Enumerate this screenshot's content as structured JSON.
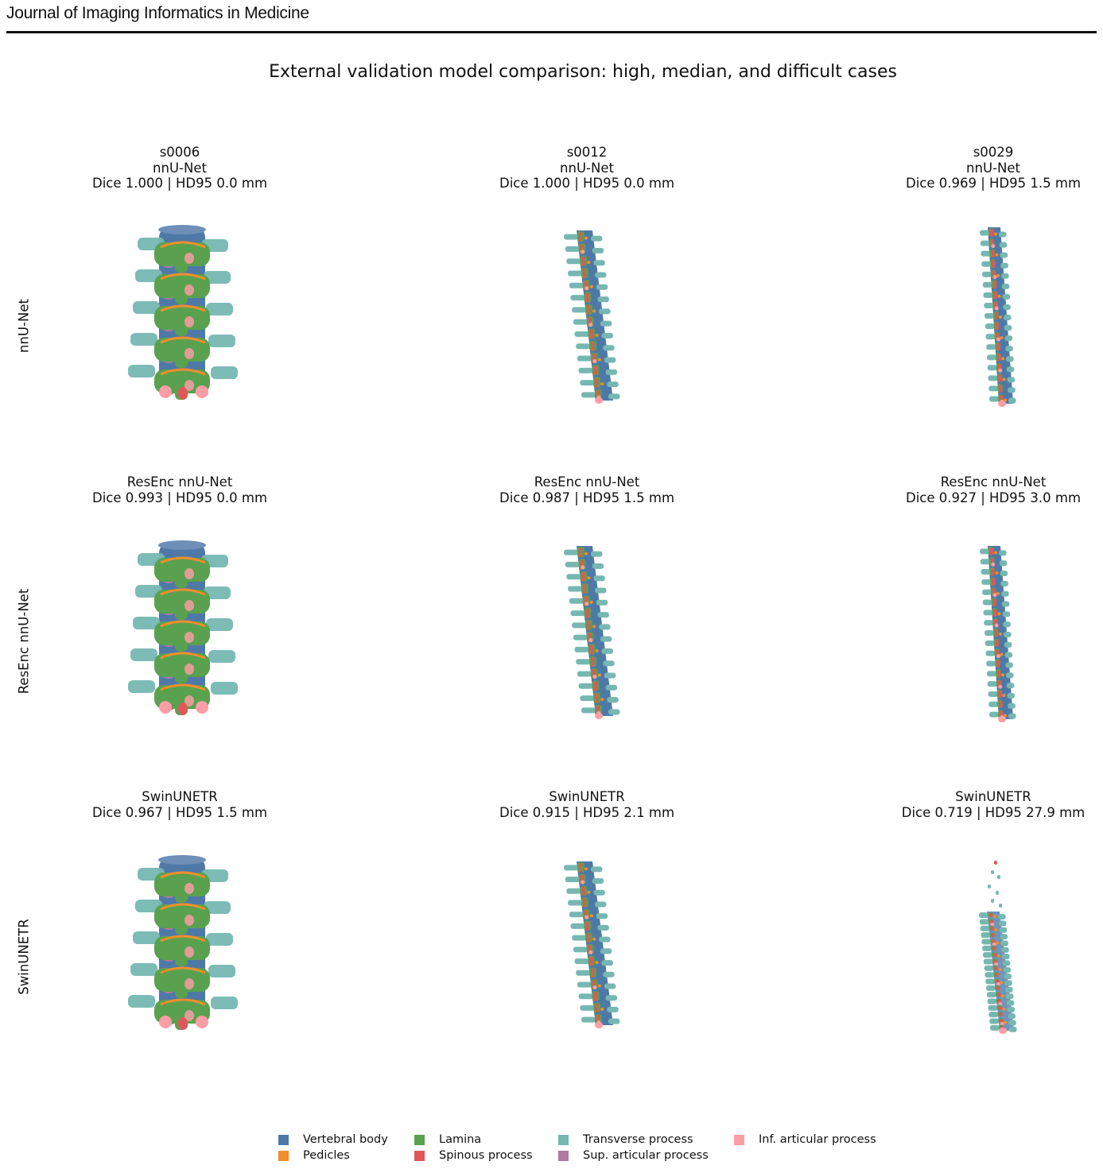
{
  "header": {
    "journal": "Journal of Imaging Informatics in Medicine"
  },
  "figure": {
    "title": "External validation model comparison: high, median, and difficult cases",
    "row_labels": [
      "nnU-Net",
      "ResEnc nnU-Net",
      "SwinUNETR"
    ],
    "panels": [
      {
        "case": "s0006",
        "model": "nnU-Net",
        "metrics": "Dice 1.000 | HD95 0.0 mm"
      },
      {
        "case": "s0012",
        "model": "nnU-Net",
        "metrics": "Dice 1.000 | HD95 0.0 mm"
      },
      {
        "case": "s0029",
        "model": "nnU-Net",
        "metrics": "Dice 0.969 | HD95 1.5 mm"
      },
      {
        "model": "ResEnc nnU-Net",
        "metrics": "Dice 0.993 | HD95 0.0 mm"
      },
      {
        "model": "ResEnc nnU-Net",
        "metrics": "Dice 0.987 | HD95 1.5 mm"
      },
      {
        "model": "ResEnc nnU-Net",
        "metrics": "Dice 0.927 | HD95 3.0 mm"
      },
      {
        "model": "SwinUNETR",
        "metrics": "Dice 0.967 | HD95 1.5 mm"
      },
      {
        "model": "SwinUNETR",
        "metrics": "Dice 0.915 | HD95 2.1 mm"
      },
      {
        "model": "SwinUNETR",
        "metrics": "Dice 0.719 | HD95 27.9 mm"
      }
    ],
    "legend": [
      {
        "label": "Vertebral body",
        "color": "#4e79a7"
      },
      {
        "label": "Pedicles",
        "color": "#f28e2b"
      },
      {
        "label": "Lamina",
        "color": "#59a14f"
      },
      {
        "label": "Spinous process",
        "color": "#e15759"
      },
      {
        "label": "Transverse process",
        "color": "#76b7b2"
      },
      {
        "label": "Sup. articular process",
        "color": "#b07aa1"
      },
      {
        "label": "Inf. articular process",
        "color": "#ff9da7"
      }
    ]
  }
}
